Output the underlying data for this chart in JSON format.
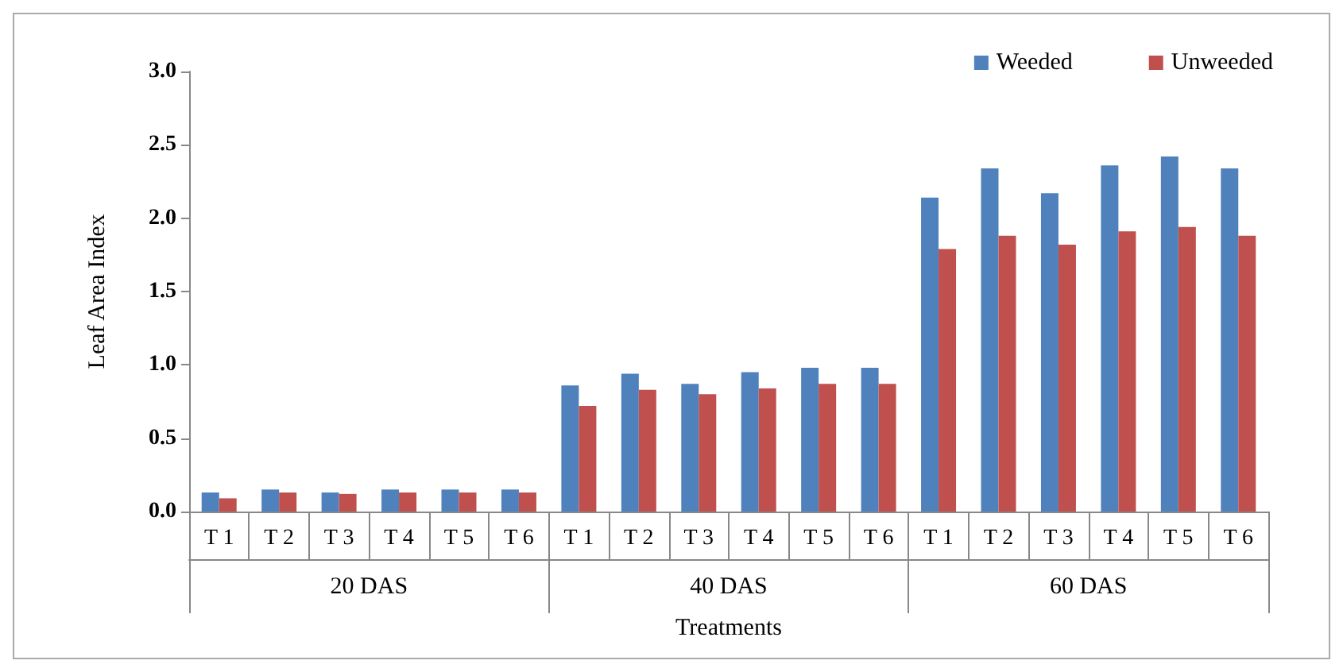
{
  "chart_data": {
    "type": "bar",
    "ylabel": "Leaf Area Index",
    "xlabel": "Treatments",
    "categories": [
      "T 1",
      "T 2",
      "T 3",
      "T 4",
      "T 5",
      "T 6",
      "T 1",
      "T 2",
      "T 3",
      "T 4",
      "T 5",
      "T 6",
      "T 1",
      "T 2",
      "T 3",
      "T 4",
      "T 5",
      "T 6"
    ],
    "annotations": [
      "20 DAS",
      "40 DAS",
      "60 DAS"
    ],
    "series": [
      {
        "name": "Weeded",
        "color": "#4f81bd",
        "values": [
          0.13,
          0.15,
          0.13,
          0.15,
          0.15,
          0.15,
          0.86,
          0.94,
          0.87,
          0.95,
          0.98,
          0.98,
          2.14,
          2.34,
          2.17,
          2.36,
          2.42,
          2.34
        ]
      },
      {
        "name": "Unweeded",
        "color": "#c0504d",
        "values": [
          0.09,
          0.13,
          0.12,
          0.13,
          0.13,
          0.13,
          0.72,
          0.83,
          0.8,
          0.84,
          0.87,
          0.87,
          1.79,
          1.88,
          1.82,
          1.91,
          1.94,
          1.88
        ]
      }
    ],
    "ylim": [
      0,
      3
    ],
    "yticks": [
      {
        "value": 0,
        "label": "0.0"
      },
      0.5,
      {
        "value": 1,
        "label": "1.0"
      },
      1.5,
      {
        "value": 2,
        "label": "2.0"
      },
      2.5,
      {
        "value": 3,
        "label": "3.0"
      }
    ],
    "grid": false,
    "legend": "top right"
  }
}
